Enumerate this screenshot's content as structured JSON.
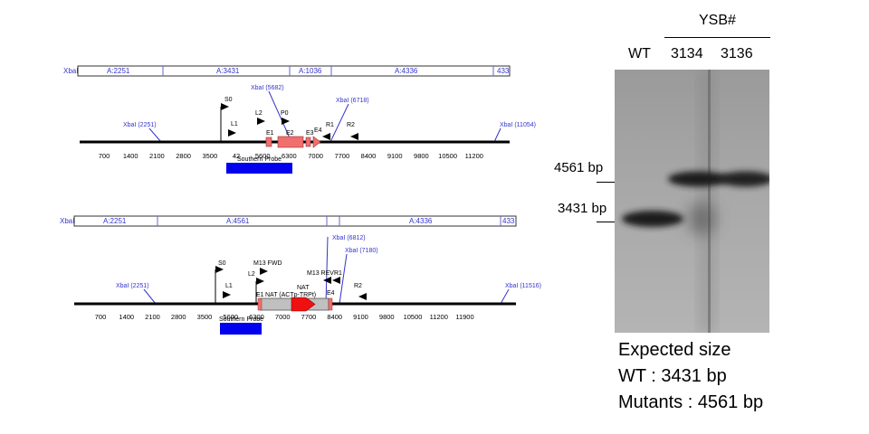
{
  "map_top": {
    "fragments": [
      {
        "label": "A:2251"
      },
      {
        "label": "A:3431"
      },
      {
        "label": "A:1036"
      },
      {
        "label": "A:4336"
      },
      {
        "label": "433"
      }
    ],
    "sites": [
      {
        "label": "XbaI (2251)"
      },
      {
        "label": "XbaI (5682)"
      },
      {
        "label": "XbaI (6718)"
      },
      {
        "label": "XbaI (11054)"
      }
    ],
    "ticks": [
      "700",
      "1400",
      "2100",
      "2800",
      "3500",
      "42",
      "5600",
      "6300",
      "7000",
      "7700",
      "8400",
      "9100",
      "9800",
      "10500",
      "11200"
    ],
    "primers": [
      "S0",
      "L1",
      "L2",
      "P0",
      "R1",
      "R2"
    ],
    "features": [
      "E1",
      "E2",
      "E3",
      "E4"
    ],
    "probe": "Southern Probe"
  },
  "map_bottom": {
    "fragments": [
      {
        "label": "A:2251"
      },
      {
        "label": "A:4561"
      },
      {
        "label": "A:4336"
      },
      {
        "label": "433"
      }
    ],
    "sites": [
      {
        "label": "XbaI (2251)"
      },
      {
        "label": "XbaI (6812)"
      },
      {
        "label": "XbaI (7180)"
      },
      {
        "label": "XbaI (11516)"
      }
    ],
    "ticks": [
      "700",
      "1400",
      "2100",
      "2800",
      "3500",
      "5600",
      "6300",
      "7000",
      "7700",
      "8400",
      "9100",
      "9800",
      "10500",
      "11200",
      "11900"
    ],
    "primers": [
      "S0",
      "L1",
      "L2",
      "M13 FWD",
      "M13 REV",
      "R1",
      "R2"
    ],
    "features": [
      "E1",
      "NAT",
      "E4"
    ],
    "cassette_label": "NAT (ACTp-TRPt)",
    "probe": "Southern Probe"
  },
  "gel": {
    "group_label": "YSB#",
    "lanes": [
      "WT",
      "3134",
      "3136"
    ],
    "markers": [
      "4561 bp",
      "3431 bp"
    ],
    "expected_title": "Expected size",
    "expected_wt": "WT : 3431 bp",
    "expected_mut": "Mutants : 4561 bp"
  },
  "colors": {
    "map_blue": "#3333cc",
    "exon": "#f07070",
    "nat": "#ee1111",
    "probe": "#0000ee",
    "cassette": "#c0c0c0"
  }
}
